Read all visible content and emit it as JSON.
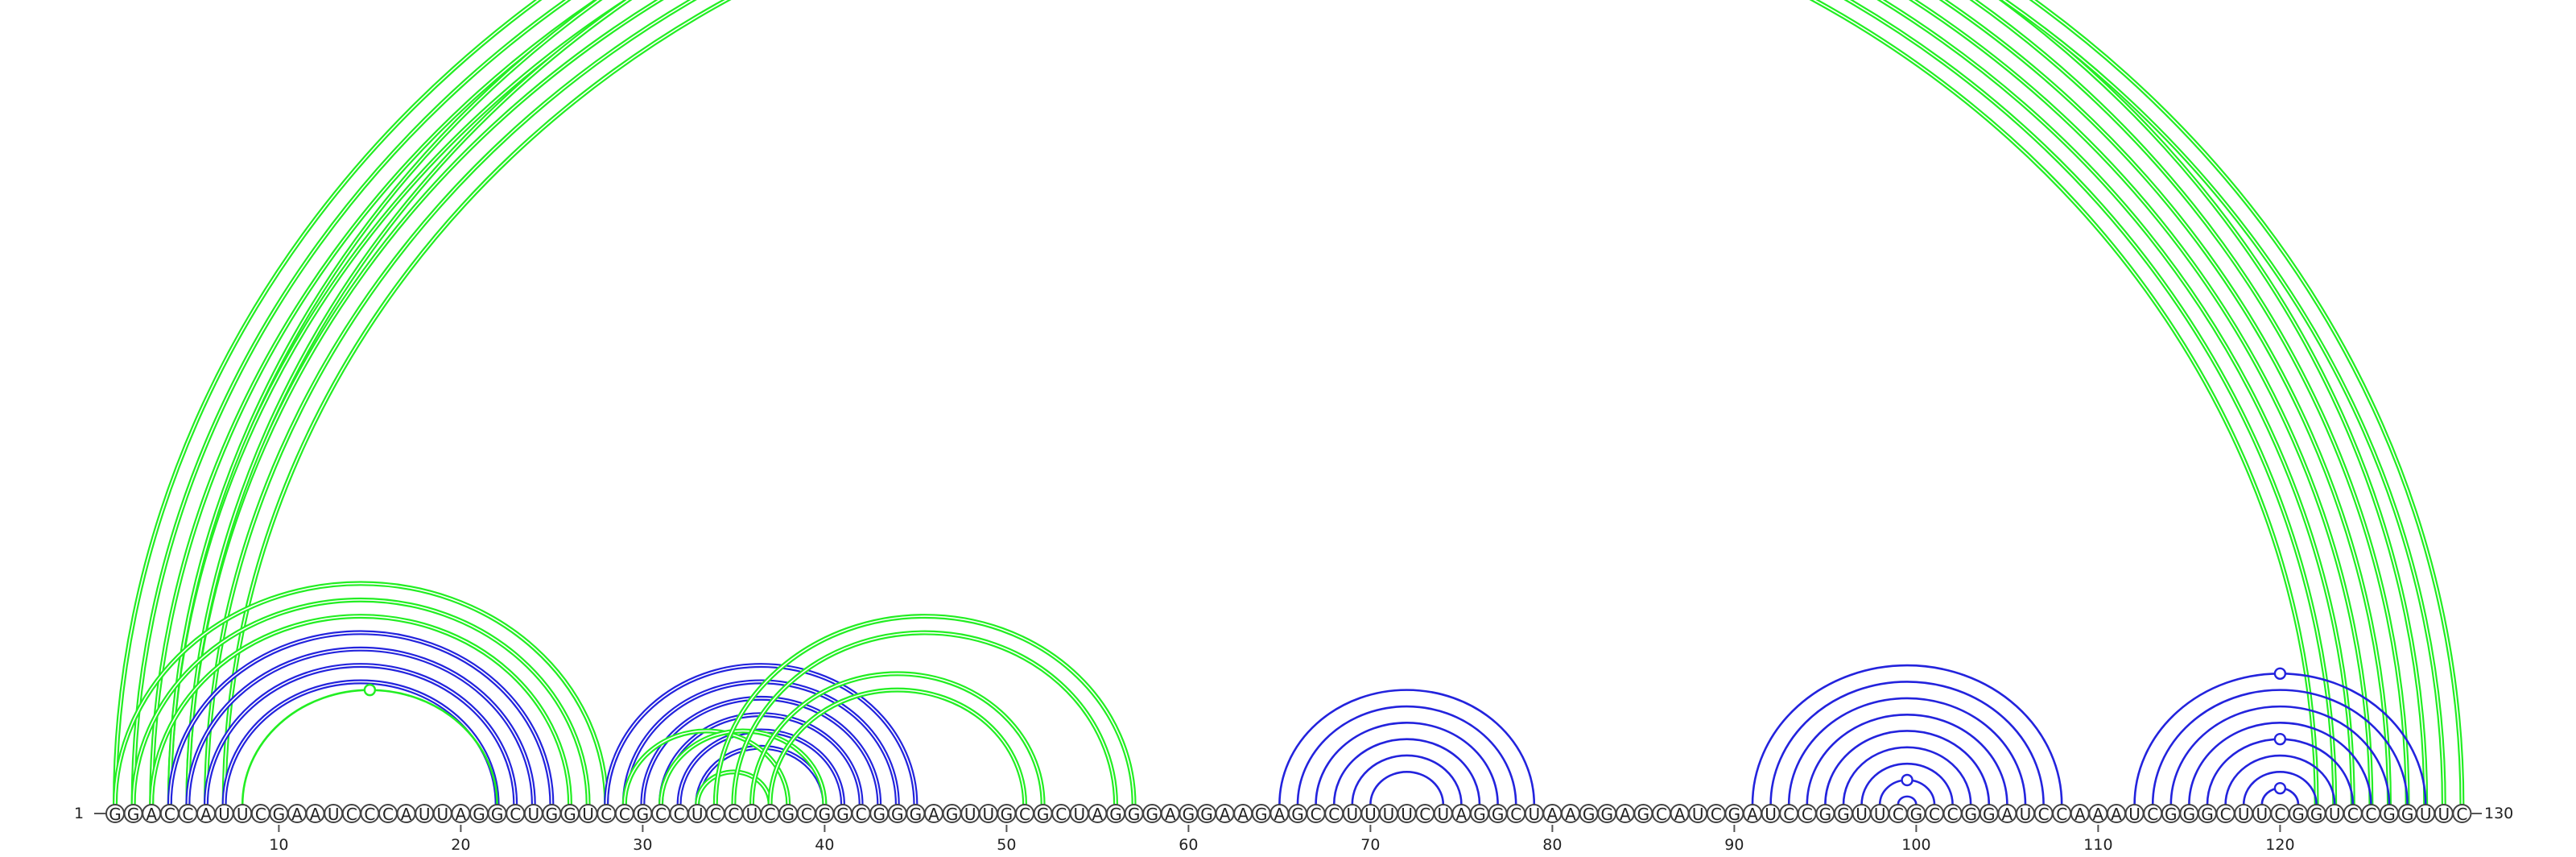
{
  "sequence": "GGACCAUUCGAAUCCCAUUAGGCUGGUCCGCCUCCUCGCGGCGGGAGUUGCGCUAGGGAGGAAGAGCCUUUUCUAGGCUAAGGAGCAUCGAUCCGGUUCGCCGGAUCCAAAUCGGGCUUCGGUCCGGUUC",
  "start_label": "1",
  "end_label": "130",
  "axis_ticks": [
    "10",
    "20",
    "30",
    "40",
    "50",
    "60",
    "70",
    "80",
    "90",
    "100",
    "110",
    "120"
  ],
  "colors": {
    "green": "#22ee22",
    "blue": "#2323dd"
  },
  "arc_groups": [
    {
      "name": "outer-long-green",
      "color": "green",
      "double": true,
      "pairs": [
        [
          1,
          128
        ],
        [
          2,
          127
        ],
        [
          3,
          126
        ],
        [
          4,
          125
        ],
        [
          5,
          124
        ],
        [
          6,
          123
        ],
        [
          7,
          122
        ]
      ]
    },
    {
      "name": "outer-far-green",
      "color": "green",
      "double": true,
      "pairs": [
        [
          4,
          130
        ],
        [
          5,
          129
        ]
      ]
    },
    {
      "name": "left-green-domain",
      "color": "green",
      "double": true,
      "pairs": [
        [
          1,
          28
        ],
        [
          2,
          27
        ],
        [
          3,
          26
        ]
      ]
    },
    {
      "name": "left-blue-helix",
      "color": "blue",
      "double": true,
      "pairs": [
        [
          4,
          25
        ],
        [
          5,
          24
        ],
        [
          6,
          23
        ],
        [
          7,
          22
        ]
      ]
    },
    {
      "name": "left-inner-green",
      "color": "green",
      "double": false,
      "pairs": [
        [
          8,
          22
        ]
      ]
    },
    {
      "name": "middle-blue-helix",
      "color": "blue",
      "double": true,
      "pairs": [
        [
          28,
          45
        ],
        [
          29,
          44
        ],
        [
          30,
          43
        ],
        [
          31,
          42
        ],
        [
          32,
          41
        ],
        [
          33,
          40
        ]
      ]
    },
    {
      "name": "middle-green-cross",
      "color": "green",
      "double": true,
      "pairs": [
        [
          29,
          38
        ],
        [
          31,
          40
        ],
        [
          33,
          37
        ],
        [
          34,
          57
        ],
        [
          35,
          56
        ],
        [
          36,
          52
        ],
        [
          37,
          51
        ]
      ]
    },
    {
      "name": "hairpin-70",
      "color": "blue",
      "double": false,
      "pairs": [
        [
          65,
          79
        ],
        [
          66,
          78
        ],
        [
          67,
          77
        ],
        [
          68,
          76
        ],
        [
          69,
          75
        ],
        [
          70,
          74
        ]
      ]
    },
    {
      "name": "hairpin-98",
      "color": "blue",
      "double": false,
      "pairs": [
        [
          91,
          108
        ],
        [
          92,
          107
        ],
        [
          93,
          106
        ],
        [
          94,
          105
        ],
        [
          95,
          104
        ],
        [
          96,
          103
        ],
        [
          97,
          102
        ],
        [
          98,
          101
        ],
        [
          99,
          100
        ]
      ]
    },
    {
      "name": "hairpin-120",
      "color": "blue",
      "double": false,
      "pairs": [
        [
          112,
          128
        ],
        [
          113,
          127
        ],
        [
          114,
          126
        ],
        [
          115,
          125
        ],
        [
          116,
          124
        ],
        [
          117,
          123
        ],
        [
          118,
          122
        ],
        [
          119,
          121
        ]
      ]
    }
  ],
  "markers": [
    {
      "color": "green",
      "pair": [
        4,
        130
      ]
    },
    {
      "color": "green",
      "pair": [
        8,
        22
      ]
    },
    {
      "color": "blue",
      "pair": [
        98,
        101
      ]
    },
    {
      "color": "blue",
      "pair": [
        112,
        128
      ]
    },
    {
      "color": "blue",
      "pair": [
        116,
        124
      ]
    },
    {
      "color": "blue",
      "pair": [
        119,
        121
      ]
    }
  ]
}
